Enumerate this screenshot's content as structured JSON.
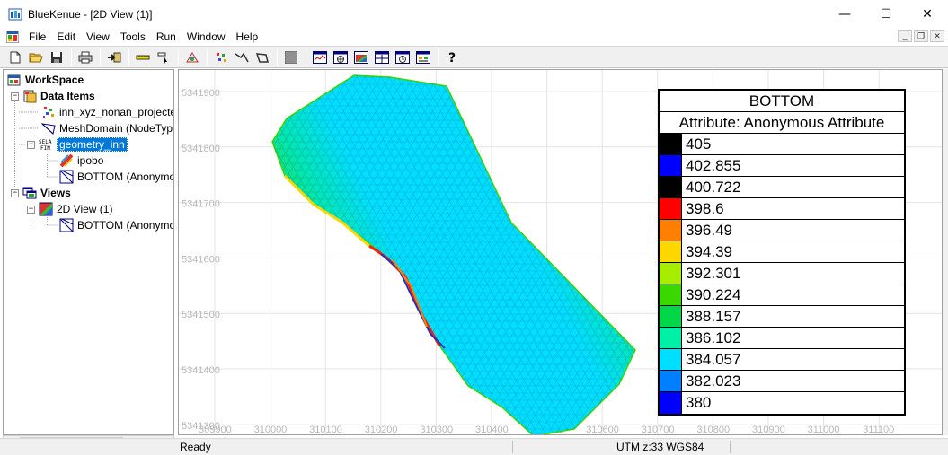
{
  "window": {
    "title": "BlueKenue - [2D View (1)]",
    "minimize": "—",
    "maximize": "☐",
    "close": "✕"
  },
  "menu": {
    "items": [
      "File",
      "Edit",
      "View",
      "Tools",
      "Run",
      "Window",
      "Help"
    ]
  },
  "mdi": {
    "minimize": "_",
    "restore": "❐",
    "close": "✕"
  },
  "workspace": {
    "root": "WorkSpace",
    "data_items": "Data Items",
    "items": [
      "inn_xyz_nonan_projecte",
      "MeshDomain (NodeTyp",
      "geometry_inn",
      "ipobo",
      "BOTTOM (Anonymo"
    ],
    "views": "Views",
    "view_2d": "2D View (1)",
    "view_child": "BOTTOM (Anonymo"
  },
  "map": {
    "y_ticks": [
      "5341900",
      "5341800",
      "5341700",
      "5341600",
      "5341500",
      "5341400",
      "5341300"
    ],
    "x_ticks": [
      "309900",
      "310000",
      "310100",
      "310200",
      "310300",
      "310400",
      "310500",
      "310600",
      "310700",
      "310800",
      "310900",
      "311000",
      "311100"
    ]
  },
  "legend": {
    "title": "BOTTOM",
    "subtitle": "Attribute: Anonymous Attribute",
    "entries": [
      {
        "value": "405",
        "color": "#000000"
      },
      {
        "value": "402.855",
        "color": "#0000ff"
      },
      {
        "value": "400.722",
        "color": "#000000"
      },
      {
        "value": "398.6",
        "color": "#ff0000"
      },
      {
        "value": "396.49",
        "color": "#ff7f00"
      },
      {
        "value": "394.39",
        "color": "#ffd700"
      },
      {
        "value": "392.301",
        "color": "#a6ed00"
      },
      {
        "value": "390.224",
        "color": "#3ad800"
      },
      {
        "value": "388.157",
        "color": "#00d84a"
      },
      {
        "value": "386.102",
        "color": "#00f0a8"
      },
      {
        "value": "384.057",
        "color": "#00dfff"
      },
      {
        "value": "382.023",
        "color": "#0080ff"
      },
      {
        "value": "380",
        "color": "#0000ff"
      }
    ]
  },
  "status": {
    "ready": "Ready",
    "crs": "UTM z:33 WGS84"
  }
}
